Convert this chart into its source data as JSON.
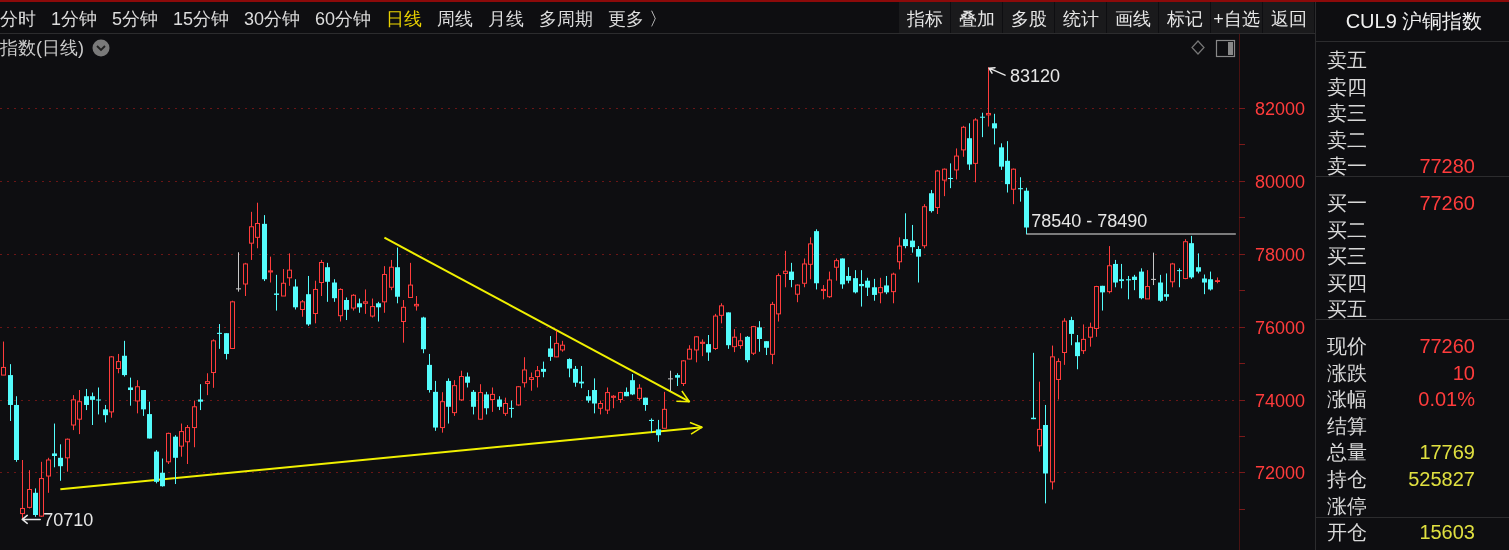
{
  "chart_data": [
    {
      "type": "other",
      "categories": [
        "分时",
        "1分钟",
        "5分钟",
        "15分钟",
        "30分钟",
        "60分钟",
        "日线",
        "周线",
        "月线",
        "多周期",
        "更多 〉"
      ],
      "colors": [
        "#dcdcdc",
        "#dcdcdc",
        "#dcdcdc",
        "#dcdcdc",
        "#dcdcdc",
        "#dcdcdc",
        "#e8d000",
        "#dcdcdc",
        "#dcdcdc",
        "#dcdcdc",
        "#dcdcdc"
      ],
      "annotations": [
        "指标",
        "叠加",
        "多股",
        "统计",
        "画线",
        "标记",
        "+自选",
        "返回"
      ]
    },
    {
      "type": "candlestick",
      "title": "指数(日线)",
      "categories": [
        null,
        null,
        null,
        null,
        null,
        null,
        null,
        null,
        null,
        null,
        null,
        null,
        null,
        null,
        null,
        null,
        null,
        null,
        null,
        null,
        null,
        null,
        null,
        null,
        null,
        null,
        null,
        null,
        null,
        null,
        null,
        null,
        null,
        null,
        null,
        null,
        null,
        null,
        null,
        null,
        null,
        null,
        null,
        null,
        null,
        null,
        null,
        null,
        null,
        null,
        null,
        null,
        null,
        null,
        null,
        null,
        null,
        null,
        null,
        null,
        null,
        null,
        null,
        null,
        null,
        null,
        null,
        null,
        null,
        null,
        null,
        null,
        null,
        null,
        null,
        null,
        null,
        null,
        null,
        null,
        null,
        null,
        null,
        null,
        null,
        null,
        null,
        null,
        null,
        null,
        null,
        null,
        null,
        null,
        null,
        null,
        null,
        null,
        null,
        null,
        null,
        null,
        null,
        null,
        null,
        null,
        null,
        null,
        null,
        null,
        null,
        null,
        null,
        null,
        null,
        null,
        null,
        null,
        null,
        null,
        null,
        null,
        null,
        null,
        null,
        null,
        null,
        null,
        null,
        null,
        null,
        null,
        null,
        null,
        null,
        null,
        null,
        null,
        null,
        null,
        null,
        null,
        null,
        null,
        null,
        null,
        null,
        null,
        null,
        null,
        null,
        null,
        null,
        null,
        null,
        null,
        null,
        null,
        null,
        null,
        null,
        null,
        null,
        null,
        null,
        null,
        null,
        null,
        null,
        null,
        null,
        null,
        null,
        null,
        null,
        null,
        null,
        null,
        null,
        null,
        null,
        null,
        null,
        null,
        null,
        null,
        null,
        null,
        null,
        null,
        null,
        null,
        null,
        null,
        null
      ],
      "ohlc": [
        [
          74670,
          75590,
          74670,
          74880
        ],
        [
          74670,
          74970,
          73410,
          73850
        ],
        [
          73850,
          74090,
          72290,
          72340
        ],
        [
          70870,
          72340,
          70710,
          71010
        ],
        [
          71040,
          72060,
          71010,
          71530
        ],
        [
          71440,
          71560,
          70780,
          70830
        ],
        [
          70800,
          72290,
          70780,
          71830
        ],
        [
          71900,
          72400,
          71440,
          72340
        ],
        [
          72520,
          73340,
          72140,
          72450
        ],
        [
          72400,
          72770,
          71770,
          72170
        ],
        [
          72400,
          72930,
          72020,
          72910
        ],
        [
          73300,
          74120,
          73160,
          73990
        ],
        [
          73460,
          74260,
          73050,
          73940
        ],
        [
          74090,
          74290,
          73710,
          73850
        ],
        [
          74090,
          74190,
          73300,
          73990
        ],
        [
          74000,
          74330,
          73590,
          73980
        ],
        [
          73730,
          73850,
          73370,
          73570
        ],
        [
          73660,
          75190,
          73500,
          75170
        ],
        [
          74850,
          75250,
          74720,
          75040
        ],
        [
          75200,
          75610,
          74630,
          74670
        ],
        [
          74330,
          74600,
          73830,
          74260
        ],
        [
          73960,
          74530,
          73620,
          74350
        ],
        [
          74260,
          74260,
          73550,
          73730
        ],
        [
          73600,
          73940,
          72930,
          72930
        ],
        [
          72570,
          72610,
          71700,
          71740
        ],
        [
          71990,
          72380,
          71610,
          71620
        ],
        [
          72290,
          73090,
          72230,
          73070
        ],
        [
          72980,
          73020,
          71680,
          72400
        ],
        [
          72720,
          73340,
          72430,
          73120
        ],
        [
          72840,
          73300,
          72230,
          73230
        ],
        [
          73230,
          73970,
          72690,
          73800
        ],
        [
          74000,
          74420,
          73710,
          73940
        ],
        [
          74440,
          74720,
          74120,
          74490
        ],
        [
          74740,
          75650,
          74320,
          75610
        ],
        [
          75830,
          76070,
          75390,
          75800
        ],
        [
          75820,
          75820,
          75100,
          75250
        ],
        [
          75400,
          76710,
          75390,
          76680
        ],
        [
          77050,
          78040,
          76960,
          77050
        ],
        [
          77170,
          77750,
          76840,
          77720
        ],
        [
          78290,
          79150,
          77830,
          78740
        ],
        [
          78450,
          79400,
          78150,
          78830
        ],
        [
          78820,
          79060,
          77250,
          77300
        ],
        [
          77500,
          77920,
          77210,
          77530
        ],
        [
          76910,
          77420,
          76440,
          76870
        ],
        [
          76840,
          77580,
          76840,
          77190
        ],
        [
          77340,
          78010,
          77120,
          77550
        ],
        [
          77100,
          77300,
          76470,
          76530
        ],
        [
          76470,
          76730,
          76270,
          76680
        ],
        [
          76890,
          77390,
          76020,
          76060
        ],
        [
          76360,
          77260,
          76090,
          77020
        ],
        [
          77210,
          77830,
          76840,
          77760
        ],
        [
          77630,
          77750,
          76680,
          77230
        ],
        [
          77210,
          77300,
          76680,
          76780
        ],
        [
          76300,
          77050,
          76140,
          77020
        ],
        [
          76730,
          76800,
          76180,
          76460
        ],
        [
          76510,
          76890,
          76440,
          76860
        ],
        [
          76640,
          76770,
          76380,
          76530
        ],
        [
          76640,
          77020,
          76350,
          76680
        ],
        [
          76290,
          76770,
          76250,
          76550
        ],
        [
          76640,
          76680,
          76140,
          76530
        ],
        [
          76680,
          77660,
          76380,
          77430
        ],
        [
          77080,
          77830,
          77000,
          77630
        ],
        [
          77630,
          78170,
          76640,
          76820
        ],
        [
          76140,
          76730,
          75560,
          76530
        ],
        [
          76800,
          77750,
          76800,
          77140
        ],
        [
          76570,
          76840,
          76440,
          76610
        ],
        [
          76250,
          76270,
          75270,
          75380
        ],
        [
          74950,
          75250,
          74190,
          74260
        ],
        [
          74210,
          74510,
          73140,
          73230
        ],
        [
          73230,
          74200,
          73090,
          73940
        ],
        [
          74510,
          74580,
          73340,
          73800
        ],
        [
          73640,
          74530,
          73550,
          74380
        ],
        [
          73990,
          74790,
          73960,
          74630
        ],
        [
          74630,
          74740,
          74330,
          74460
        ],
        [
          74210,
          74260,
          73590,
          73800
        ],
        [
          73460,
          74420,
          73450,
          74190
        ],
        [
          74140,
          74210,
          73590,
          73760
        ],
        [
          74000,
          74330,
          73660,
          74140
        ],
        [
          74000,
          74090,
          73710,
          73800
        ],
        [
          73620,
          74050,
          73550,
          73890
        ],
        [
          73770,
          73970,
          73500,
          73750
        ],
        [
          73850,
          74370,
          73830,
          74350
        ],
        [
          74460,
          75160,
          74330,
          74810
        ],
        [
          74550,
          74740,
          74240,
          74600
        ],
        [
          74630,
          74920,
          74330,
          74790
        ],
        [
          74840,
          75040,
          74610,
          74760
        ],
        [
          75400,
          75740,
          75060,
          75170
        ],
        [
          75170,
          75890,
          75160,
          75540
        ],
        [
          75360,
          75610,
          75310,
          75490
        ],
        [
          75110,
          75130,
          74610,
          74850
        ],
        [
          74840,
          74920,
          74350,
          74460
        ],
        [
          74490,
          74920,
          74310,
          74440
        ],
        [
          74090,
          74260,
          73910,
          73970
        ],
        [
          74260,
          74580,
          73620,
          73890
        ],
        [
          73760,
          73970,
          73590,
          73890
        ],
        [
          73710,
          74330,
          73600,
          74190
        ],
        [
          74060,
          74120,
          73760,
          74090
        ],
        [
          74000,
          74210,
          73910,
          74190
        ],
        [
          74210,
          74330,
          74090,
          74090
        ],
        [
          74530,
          74700,
          74120,
          74140
        ],
        [
          74030,
          74420,
          73970,
          74310
        ],
        [
          74050,
          74050,
          73690,
          73850
        ],
        [
          73440,
          73480,
          73090,
          73410
        ],
        [
          73180,
          73440,
          72840,
          73020
        ],
        [
          73210,
          74210,
          73210,
          73730
        ],
        [
          74580,
          74790,
          74230,
          74580
        ],
        [
          74670,
          74720,
          74370,
          74600
        ],
        [
          74440,
          75080,
          74370,
          75060
        ],
        [
          75110,
          75490,
          75100,
          75380
        ],
        [
          75360,
          75740,
          75020,
          75720
        ],
        [
          75540,
          75650,
          75190,
          75570
        ],
        [
          75520,
          75770,
          75060,
          75290
        ],
        [
          75400,
          76350,
          75360,
          76290
        ],
        [
          76310,
          76640,
          76090,
          76570
        ],
        [
          76390,
          76390,
          75390,
          75490
        ],
        [
          75450,
          75930,
          75300,
          75710
        ],
        [
          75480,
          75820,
          75390,
          75610
        ],
        [
          75720,
          75740,
          75020,
          75080
        ],
        [
          75270,
          76020,
          75220,
          76000
        ],
        [
          75980,
          76150,
          75310,
          75660
        ],
        [
          75600,
          75600,
          75220,
          75420
        ],
        [
          75240,
          76680,
          74970,
          76610
        ],
        [
          76350,
          77460,
          76140,
          77400
        ],
        [
          77460,
          78080,
          77080,
          77520
        ],
        [
          77510,
          77750,
          77080,
          77280
        ],
        [
          76890,
          77160,
          76670,
          77140
        ],
        [
          77190,
          77870,
          77080,
          77720
        ],
        [
          77710,
          78450,
          77300,
          78270
        ],
        [
          78620,
          78670,
          77020,
          77190
        ],
        [
          76990,
          77140,
          76750,
          77020
        ],
        [
          76820,
          77510,
          76790,
          77280
        ],
        [
          77630,
          77870,
          77260,
          77810
        ],
        [
          77870,
          77870,
          77040,
          77160
        ],
        [
          77390,
          77630,
          77190,
          77260
        ],
        [
          77330,
          77550,
          76910,
          76940
        ],
        [
          77170,
          77550,
          76550,
          77110
        ],
        [
          77260,
          77340,
          76840,
          77070
        ],
        [
          77080,
          77310,
          76710,
          76870
        ],
        [
          76930,
          77340,
          76640,
          77070
        ],
        [
          77130,
          77390,
          76890,
          76940
        ],
        [
          76960,
          77480,
          76640,
          77440
        ],
        [
          77780,
          78450,
          77570,
          78210
        ],
        [
          78400,
          79110,
          78150,
          78210
        ],
        [
          78360,
          78790,
          78030,
          78180
        ],
        [
          78130,
          78210,
          77210,
          77920
        ],
        [
          78220,
          79360,
          78150,
          79290
        ],
        [
          79660,
          79750,
          79130,
          79170
        ],
        [
          79270,
          80300,
          79090,
          80270
        ],
        [
          80020,
          80340,
          79580,
          80320
        ],
        [
          80080,
          80480,
          79800,
          80050
        ],
        [
          80300,
          80890,
          80040,
          80680
        ],
        [
          80850,
          81510,
          80660,
          81470
        ],
        [
          81170,
          81580,
          80300,
          80450
        ],
        [
          80480,
          81720,
          79960,
          81670
        ],
        [
          81760,
          81870,
          81200,
          81740
        ],
        [
          81810,
          83120,
          81490,
          81850
        ],
        [
          81580,
          81840,
          81000,
          81440
        ],
        [
          80920,
          81030,
          80300,
          80390
        ],
        [
          80550,
          81090,
          79680,
          79910
        ],
        [
          79770,
          80340,
          79360,
          80320
        ],
        [
          79800,
          80100,
          79430,
          79770
        ],
        [
          79730,
          79810,
          78540,
          78720
        ],
        [
          73500,
          75280,
          73460,
          73460
        ],
        [
          72730,
          74490,
          72570,
          73180
        ],
        [
          73300,
          73850,
          71150,
          71970
        ],
        [
          71740,
          75480,
          71530,
          75170
        ],
        [
          74550,
          75130,
          74000,
          75040
        ],
        [
          75290,
          76230,
          74950,
          76150
        ],
        [
          76180,
          76270,
          75490,
          75800
        ],
        [
          75570,
          75770,
          74830,
          75190
        ],
        [
          75340,
          76060,
          75250,
          75650
        ],
        [
          75710,
          76110,
          75450,
          75980
        ],
        [
          75950,
          77120,
          75720,
          77100
        ],
        [
          77120,
          77120,
          76440,
          76940
        ],
        [
          76960,
          78210,
          76910,
          77670
        ],
        [
          77720,
          77830,
          77080,
          77210
        ],
        [
          77300,
          77720,
          77050,
          77250
        ],
        [
          77300,
          77390,
          76750,
          77270
        ],
        [
          77370,
          77420,
          77000,
          77280
        ],
        [
          77510,
          77600,
          76750,
          76780
        ],
        [
          76760,
          77550,
          76760,
          77100
        ],
        [
          77310,
          78030,
          77140,
          77310
        ],
        [
          77210,
          77420,
          76680,
          76710
        ],
        [
          76890,
          77460,
          76710,
          76820
        ],
        [
          77230,
          77750,
          77080,
          77720
        ],
        [
          77550,
          77600,
          77080,
          77530
        ],
        [
          77320,
          78400,
          77300,
          78330
        ],
        [
          78290,
          78490,
          77310,
          77350
        ],
        [
          77630,
          78010,
          77460,
          77510
        ],
        [
          77320,
          77430,
          76890,
          77210
        ],
        [
          77300,
          77510,
          76990,
          77020
        ],
        [
          77250,
          77350,
          77190,
          77260
        ],
        null,
        null,
        null
      ],
      "colors": [
        "#ff3c3c",
        "#54fcfc",
        "#54fcfc",
        "#ff3c3c",
        "#ff3c3c",
        "#54fcfc",
        "#ff3c3c",
        "#ff3c3c",
        "#54fcfc",
        "#54fcfc",
        "#ff3c3c",
        "#ff3c3c",
        "#ff3c3c",
        "#54fcfc",
        "#54fcfc",
        "#54fcfc",
        "#54fcfc",
        "#ff3c3c",
        "#ff3c3c",
        "#54fcfc",
        "#54fcfc",
        "#ff3c3c",
        "#54fcfc",
        "#54fcfc",
        "#54fcfc",
        "#54fcfc",
        "#ff3c3c",
        "#54fcfc",
        "#ff3c3c",
        "#ff3c3c",
        "#ff3c3c",
        "#54fcfc",
        "#ff3c3c",
        "#ff3c3c",
        "#54fcfc",
        "#54fcfc",
        "#ff3c3c",
        "#c8c8c8",
        "#ff3c3c",
        "#ff3c3c",
        "#ff3c3c",
        "#54fcfc",
        "#ff3c3c",
        "#54fcfc",
        "#ff3c3c",
        "#ff3c3c",
        "#54fcfc",
        "#ff3c3c",
        "#54fcfc",
        "#ff3c3c",
        "#ff3c3c",
        "#54fcfc",
        "#54fcfc",
        "#ff3c3c",
        "#54fcfc",
        "#ff3c3c",
        "#54fcfc",
        "#ff3c3c",
        "#ff3c3c",
        "#54fcfc",
        "#ff3c3c",
        "#ff3c3c",
        "#54fcfc",
        "#ff3c3c",
        "#ff3c3c",
        "#ff3c3c",
        "#54fcfc",
        "#54fcfc",
        "#54fcfc",
        "#ff3c3c",
        "#54fcfc",
        "#ff3c3c",
        "#ff3c3c",
        "#54fcfc",
        "#54fcfc",
        "#ff3c3c",
        "#54fcfc",
        "#ff3c3c",
        "#54fcfc",
        "#ff3c3c",
        "#54fcfc",
        "#ff3c3c",
        "#ff3c3c",
        "#ff3c3c",
        "#ff3c3c",
        "#54fcfc",
        "#54fcfc",
        "#ff3c3c",
        "#ff3c3c",
        "#54fcfc",
        "#54fcfc",
        "#54fcfc",
        "#54fcfc",
        "#54fcfc",
        "#ff3c3c",
        "#ff3c3c",
        "#ff3c3c",
        "#ff3c3c",
        "#54fcfc",
        "#54fcfc",
        "#ff3c3c",
        "#54fcfc",
        "#54fcfc",
        "#54fcfc",
        "#ff3c3c",
        "#c8c8c8",
        "#54fcfc",
        "#ff3c3c",
        "#ff3c3c",
        "#ff3c3c",
        "#ff3c3c",
        "#54fcfc",
        "#ff3c3c",
        "#ff3c3c",
        "#54fcfc",
        "#ff3c3c",
        "#ff3c3c",
        "#54fcfc",
        "#ff3c3c",
        "#54fcfc",
        "#54fcfc",
        "#ff3c3c",
        "#ff3c3c",
        "#ff3c3c",
        "#54fcfc",
        "#ff3c3c",
        "#ff3c3c",
        "#ff3c3c",
        "#54fcfc",
        "#ff3c3c",
        "#ff3c3c",
        "#ff3c3c",
        "#54fcfc",
        "#54fcfc",
        "#54fcfc",
        "#54fcfc",
        "#54fcfc",
        "#54fcfc",
        "#ff3c3c",
        "#54fcfc",
        "#ff3c3c",
        "#ff3c3c",
        "#54fcfc",
        "#54fcfc",
        "#54fcfc",
        "#ff3c3c",
        "#54fcfc",
        "#ff3c3c",
        "#ff3c3c",
        "#54fcfc",
        "#ff3c3c",
        "#ff3c3c",
        "#54fcfc",
        "#ff3c3c",
        "#54fcfc",
        "#ff3c3c",
        "#54fcfc",
        "#54fcfc",
        "#54fcfc",
        "#ff3c3c",
        "#54fcfc",
        "#54fcfc",
        "#54fcfc",
        "#ff3c3c",
        "#54fcfc",
        "#ff3c3c",
        "#ff3c3c",
        "#ff3c3c",
        "#54fcfc",
        "#54fcfc",
        "#ff3c3c",
        "#ff3c3c",
        "#ff3c3c",
        "#54fcfc",
        "#ff3c3c",
        "#54fcfc",
        "#54fcfc",
        "#54fcfc",
        "#54fcfc",
        "#54fcfc",
        "#ff3c3c",
        "#c8c8c8",
        "#54fcfc",
        "#54fcfc",
        "#ff3c3c",
        "#54fcfc",
        "#ff3c3c",
        "#54fcfc",
        "#54fcfc",
        "#54fcfc",
        "#54fcfc",
        "#ff3c3c",
        null,
        null,
        null
      ],
      "value_labels": [
        null,
        null,
        null,
        "70710",
        null,
        null,
        null,
        null,
        null,
        null,
        null,
        null,
        null,
        null,
        null,
        null,
        null,
        null,
        null,
        null,
        null,
        null,
        null,
        null,
        null,
        null,
        null,
        null,
        null,
        null,
        null,
        null,
        null,
        null,
        null,
        null,
        null,
        null,
        null,
        null,
        null,
        null,
        null,
        null,
        null,
        null,
        null,
        null,
        null,
        null,
        null,
        null,
        null,
        null,
        null,
        null,
        null,
        null,
        null,
        null,
        null,
        null,
        null,
        null,
        null,
        null,
        null,
        null,
        null,
        null,
        null,
        null,
        null,
        null,
        null,
        null,
        null,
        null,
        null,
        null,
        null,
        null,
        null,
        null,
        null,
        null,
        null,
        null,
        null,
        null,
        null,
        null,
        null,
        null,
        null,
        null,
        null,
        null,
        null,
        null,
        null,
        null,
        null,
        null,
        null,
        null,
        null,
        null,
        null,
        null,
        null,
        null,
        null,
        null,
        null,
        null,
        null,
        null,
        null,
        null,
        null,
        null,
        null,
        null,
        null,
        null,
        null,
        null,
        null,
        null,
        null,
        null,
        null,
        null,
        null,
        null,
        null,
        null,
        null,
        null,
        null,
        null,
        null,
        null,
        null,
        null,
        null,
        null,
        null,
        null,
        null,
        null,
        null,
        null,
        null,
        "83120",
        null,
        null,
        null,
        null,
        null,
        null,
        null,
        null,
        null,
        null,
        null,
        null,
        null,
        null,
        null,
        null,
        null,
        null,
        null,
        null,
        null,
        null,
        null,
        null,
        null,
        null,
        null,
        null,
        null,
        null,
        null,
        null,
        null,
        null,
        null,
        null,
        null,
        null,
        null
      ],
      "ylim": [
        69870,
        84030
      ],
      "yticks": [
        {
          "value": 71000,
          "label": null
        },
        72000,
        {
          "value": 73000,
          "label": null
        },
        74000,
        {
          "value": 75000,
          "label": null
        },
        76000,
        {
          "value": 77000,
          "label": null
        },
        78000,
        {
          "value": 79000,
          "label": null
        },
        80000,
        {
          "value": 81000,
          "label": null
        },
        82000
      ],
      "grid": "y",
      "series": [
        {
          "type": "line",
          "color": "#f0f000",
          "values": [
            null,
            null,
            null,
            null,
            null,
            null,
            null,
            null,
            null,
            71540,
            null,
            null,
            null,
            null,
            null,
            null,
            null,
            null,
            null,
            null,
            null,
            null,
            null,
            null,
            null,
            null,
            null,
            null,
            null,
            null,
            null,
            null,
            null,
            null,
            null,
            null,
            null,
            null,
            null,
            null,
            null,
            null,
            null,
            null,
            null,
            null,
            null,
            null,
            null,
            null,
            null,
            null,
            null,
            null,
            null,
            null,
            null,
            null,
            null,
            null,
            null,
            null,
            null,
            null,
            null,
            null,
            null,
            null,
            null,
            null,
            null,
            null,
            null,
            null,
            null,
            null,
            null,
            null,
            null,
            null,
            null,
            null,
            null,
            null,
            null,
            null,
            null,
            null,
            null,
            null,
            null,
            null,
            null,
            null,
            null,
            null,
            null,
            null,
            null,
            null,
            null,
            null,
            null,
            null,
            null,
            null,
            null,
            null,
            null,
            null,
            73240,
            null,
            null,
            null,
            null,
            null,
            null,
            null,
            null,
            null,
            null,
            null,
            null,
            null,
            null,
            null,
            null,
            null,
            null,
            null,
            null,
            null,
            null,
            null,
            null,
            null,
            null,
            null,
            null,
            null,
            null,
            null,
            null,
            null,
            null,
            null,
            null,
            null,
            null,
            null,
            null,
            null,
            null,
            null,
            null,
            null,
            null,
            null,
            null,
            null,
            null,
            null,
            null,
            null,
            null,
            null,
            null,
            null,
            null,
            null,
            null,
            null,
            null,
            null,
            null,
            null,
            null,
            null,
            null,
            null,
            null,
            null,
            null,
            null,
            null,
            null,
            null,
            null,
            null,
            null,
            null,
            null,
            null,
            null,
            null
          ]
        },
        {
          "type": "line",
          "color": "#f0f000",
          "values": [
            null,
            null,
            null,
            null,
            null,
            null,
            null,
            null,
            null,
            null,
            null,
            null,
            null,
            null,
            null,
            null,
            null,
            null,
            null,
            null,
            null,
            null,
            null,
            null,
            null,
            null,
            null,
            null,
            null,
            null,
            null,
            null,
            null,
            null,
            null,
            null,
            null,
            null,
            null,
            null,
            null,
            null,
            null,
            null,
            null,
            null,
            null,
            null,
            null,
            null,
            null,
            null,
            null,
            null,
            null,
            null,
            null,
            null,
            null,
            null,
            78440,
            null,
            null,
            null,
            null,
            null,
            null,
            null,
            null,
            null,
            null,
            null,
            null,
            null,
            null,
            null,
            null,
            null,
            null,
            null,
            null,
            null,
            null,
            null,
            null,
            null,
            null,
            null,
            null,
            null,
            null,
            null,
            null,
            null,
            null,
            null,
            null,
            null,
            null,
            null,
            null,
            null,
            null,
            null,
            null,
            null,
            null,
            null,
            73940,
            null,
            null,
            null,
            null,
            null,
            null,
            null,
            null,
            null,
            null,
            null,
            null,
            null,
            null,
            null,
            null,
            null,
            null,
            null,
            null,
            null,
            null,
            null,
            null,
            null,
            null,
            null,
            null,
            null,
            null,
            null,
            null,
            null,
            null,
            null,
            null,
            null,
            null,
            null,
            null,
            null,
            null,
            null,
            null,
            null,
            null,
            null,
            null,
            null,
            null,
            null,
            null,
            null,
            null,
            null,
            null,
            null,
            null,
            null,
            null,
            null,
            null,
            null,
            null,
            null,
            null,
            null,
            null,
            null,
            null,
            null,
            null,
            null,
            null,
            null,
            null,
            null,
            null,
            null,
            null,
            null,
            null,
            null,
            null,
            null,
            null
          ]
        },
        {
          "type": "line",
          "name": "78540 - 78490",
          "color": "#a0a0a0",
          "values": [
            null,
            null,
            null,
            null,
            null,
            null,
            null,
            null,
            null,
            null,
            null,
            null,
            null,
            null,
            null,
            null,
            null,
            null,
            null,
            null,
            null,
            null,
            null,
            null,
            null,
            null,
            null,
            null,
            null,
            null,
            null,
            null,
            null,
            null,
            null,
            null,
            null,
            null,
            null,
            null,
            null,
            null,
            null,
            null,
            null,
            null,
            null,
            null,
            null,
            null,
            null,
            null,
            null,
            null,
            null,
            null,
            null,
            null,
            null,
            null,
            null,
            null,
            null,
            null,
            null,
            null,
            null,
            null,
            null,
            null,
            null,
            null,
            null,
            null,
            null,
            null,
            null,
            null,
            null,
            null,
            null,
            null,
            null,
            null,
            null,
            null,
            null,
            null,
            null,
            null,
            null,
            null,
            null,
            null,
            null,
            null,
            null,
            null,
            null,
            null,
            null,
            null,
            null,
            null,
            null,
            null,
            null,
            null,
            null,
            null,
            null,
            null,
            null,
            null,
            null,
            null,
            null,
            null,
            null,
            null,
            null,
            null,
            null,
            null,
            null,
            null,
            null,
            null,
            null,
            null,
            null,
            null,
            null,
            null,
            null,
            null,
            null,
            null,
            null,
            null,
            null,
            null,
            null,
            null,
            null,
            null,
            null,
            null,
            null,
            null,
            null,
            null,
            null,
            null,
            null,
            null,
            null,
            null,
            null,
            null,
            null,
            78540,
            null,
            null,
            null,
            null,
            null,
            null,
            null,
            null,
            null,
            null,
            null,
            null,
            null,
            null,
            null,
            null,
            null,
            null,
            null,
            null,
            null,
            null,
            null,
            null,
            null,
            null,
            null,
            null,
            null,
            null,
            null,
            null,
            78540
          ]
        }
      ]
    },
    {
      "type": "other",
      "title": "CUL9 沪铜指数",
      "categories": [
        "卖五",
        "卖四",
        "卖三",
        "卖二",
        "卖一",
        "买一",
        "买二",
        "买三",
        "买四",
        "买五",
        "现价",
        "涨跌",
        "涨幅",
        "结算",
        "总量",
        "持仓",
        "涨停",
        "开仓"
      ],
      "value_labels": [
        null,
        null,
        null,
        null,
        "77280",
        "77260",
        null,
        null,
        null,
        null,
        "77260",
        "10",
        "0.01%",
        null,
        "17769",
        "525827",
        null,
        "15603"
      ],
      "colors": [
        null,
        null,
        null,
        null,
        "#ff3c3c",
        "#ff3c3c",
        null,
        null,
        null,
        null,
        "#ff3c3c",
        "#ff3c3c",
        "#ff3c3c",
        null,
        "#e0e040",
        "#e0e040",
        null,
        "#e0e040"
      ]
    }
  ]
}
